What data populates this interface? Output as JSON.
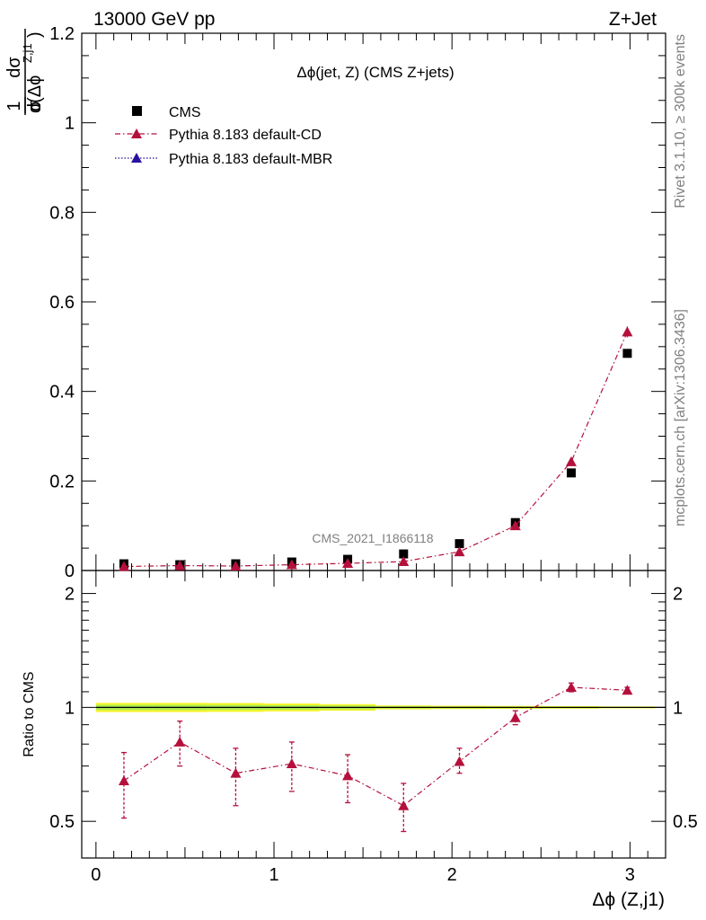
{
  "header": {
    "energy_label": "13000 GeV pp",
    "process_label": "Z+Jet"
  },
  "side_labels": {
    "rivet": "Rivet 3.1.10, ≥ 300k events",
    "mcplots": "mcplots.cern.ch [arXiv:1306.3436]"
  },
  "main_plot": {
    "title": "Δϕ(jet, Z) (CMS Z+jets)",
    "ylabel_frac_num": "1",
    "ylabel_frac_den": "σ",
    "ylabel_num": "dσ",
    "ylabel_den": "d(Δϕ",
    "ylabel_sup": "Z,j1",
    "ylabel_close": ")",
    "watermark": "CMS_2021_I1866118",
    "ytick_labels": [
      "0",
      "0.2",
      "0.4",
      "0.6",
      "0.8",
      "1",
      "1.2"
    ]
  },
  "ratio_plot": {
    "ylabel": "Ratio to CMS",
    "ytick_labels": [
      "0.5",
      "1",
      "2"
    ]
  },
  "xaxis": {
    "label": "Δϕ (Z,j1)",
    "tick_labels": [
      "0",
      "1",
      "2",
      "3"
    ]
  },
  "legend": [
    {
      "label": "CMS",
      "color": "#000000",
      "marker": "square"
    },
    {
      "label": "Pythia 8.183 default-CD",
      "color": "#b5103c",
      "marker": "triangle"
    },
    {
      "label": "Pythia 8.183 default-MBR",
      "color": "#2a0fa0",
      "marker": "triangle"
    }
  ],
  "chart_data": [
    {
      "type": "scatter",
      "panel": "main",
      "title": "Δϕ(jet, Z) (CMS Z+jets)",
      "xlabel": "Δϕ (Z,j1)",
      "ylabel": "1/σ dσ/d(Δϕ^{Z,j1})",
      "xlim": [
        -0.08,
        3.2
      ],
      "ylim": [
        0,
        1.2
      ],
      "x": [
        0.157,
        0.471,
        0.785,
        1.1,
        1.414,
        1.728,
        2.042,
        2.356,
        2.67,
        2.985
      ],
      "series": [
        {
          "name": "CMS",
          "color": "#000000",
          "marker": "square",
          "values": [
            0.015,
            0.013,
            0.015,
            0.019,
            0.025,
            0.037,
            0.06,
            0.107,
            0.218,
            0.485
          ]
        },
        {
          "name": "Pythia 8.183 default-CD",
          "color": "#b5103c",
          "marker": "triangle",
          "line": "dash-dot",
          "values": [
            0.009,
            0.011,
            0.01,
            0.013,
            0.016,
            0.02,
            0.042,
            0.1,
            0.243,
            0.533
          ],
          "errors": [
            0.001,
            0.001,
            0.001,
            0.001,
            0.001,
            0.001,
            0.002,
            0.004,
            0.006,
            0.012
          ]
        }
      ]
    },
    {
      "type": "scatter",
      "panel": "ratio",
      "ylabel": "Ratio to CMS",
      "yscale": "log",
      "ylim": [
        0.4,
        2.3
      ],
      "reference": 1.0,
      "x": [
        0.157,
        0.471,
        0.785,
        1.1,
        1.414,
        1.728,
        2.042,
        2.356,
        2.67,
        2.985
      ],
      "band_x": [
        0.0,
        0.314,
        0.628,
        0.942,
        1.256,
        1.57,
        1.884,
        2.198,
        2.512,
        2.826,
        3.14
      ],
      "band_halfwidth": [
        0.028,
        0.028,
        0.027,
        0.024,
        0.02,
        0.012,
        0.01,
        0.009,
        0.008,
        0.006
      ],
      "series": [
        {
          "name": "Pythia 8.183 default-CD",
          "color": "#b5103c",
          "marker": "triangle",
          "line": "dash-dot",
          "values": [
            0.64,
            0.81,
            0.67,
            0.71,
            0.66,
            0.55,
            0.72,
            0.94,
            1.13,
            1.11
          ],
          "err_low": [
            0.13,
            0.11,
            0.12,
            0.11,
            0.1,
            0.08,
            0.05,
            0.04,
            0.03,
            0.02
          ],
          "err_high": [
            0.12,
            0.11,
            0.11,
            0.1,
            0.09,
            0.08,
            0.06,
            0.04,
            0.03,
            0.02
          ]
        }
      ]
    }
  ]
}
